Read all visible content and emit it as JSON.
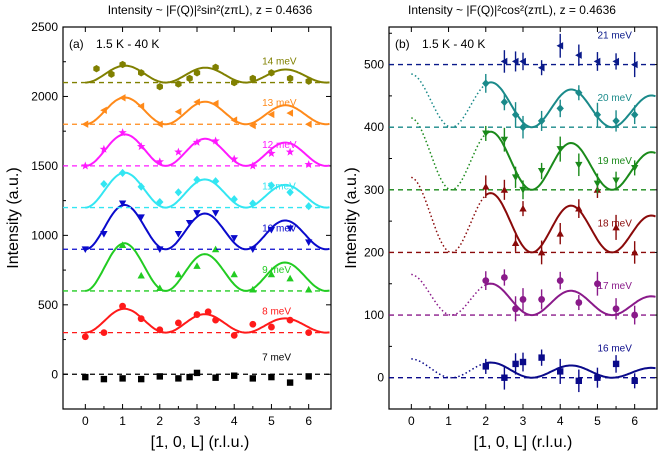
{
  "chart_data": [
    {
      "type": "scatter",
      "id": "a",
      "panel_label": "(a)",
      "temp_label": "1.5 K - 40 K",
      "title": "Intensity ~ |F(Q)|²sin²(zπL),  z = 0.4636",
      "xlabel": "[1, 0, L] (r.l.u.)",
      "ylabel": "Intensity (a.u.)",
      "xlim": [
        -0.6,
        6.6
      ],
      "ylim": [
        -250,
        2500
      ],
      "xticks": [
        "0",
        "1",
        "2",
        "3",
        "4",
        "5",
        "6"
      ],
      "yticks": [
        "0",
        "500",
        "1000",
        "1500",
        "2000",
        "2500"
      ],
      "z": 0.4636,
      "series": [
        {
          "name": "7 meV",
          "color": "#000000",
          "marker": "square",
          "baseline": 0,
          "amp": 0,
          "decay": 0,
          "x": [
            0,
            0.5,
            1,
            1.5,
            2,
            2.5,
            2.8,
            3,
            3.5,
            4,
            4.5,
            5,
            5.5,
            6
          ],
          "y": [
            -20,
            -35,
            -30,
            -35,
            -15,
            -30,
            -20,
            10,
            -25,
            -10,
            -30,
            -20,
            -60,
            -15
          ]
        },
        {
          "name": "8 meV",
          "color": "#ff1a1a",
          "marker": "circle",
          "baseline": 300,
          "amp": 195,
          "decay": 0.12,
          "x": [
            0,
            0.5,
            1,
            1.5,
            2,
            2.5,
            3,
            3.3,
            3.5,
            4,
            4.5,
            5,
            5.5,
            6
          ],
          "y": [
            270,
            300,
            490,
            400,
            320,
            370,
            430,
            450,
            390,
            280,
            360,
            340,
            390,
            300
          ]
        },
        {
          "name": "9 meV",
          "color": "#22cc22",
          "marker": "triangle",
          "baseline": 600,
          "amp": 390,
          "decay": 0.12,
          "x": [
            1,
            1.5,
            2,
            2.5,
            3,
            3.5,
            4,
            4.5,
            5,
            5.5,
            6
          ],
          "y": [
            930,
            710,
            620,
            720,
            780,
            900,
            720,
            610,
            720,
            690,
            610
          ]
        },
        {
          "name": "10 meV",
          "color": "#0a0acc",
          "marker": "triangle-down",
          "baseline": 900,
          "amp": 355,
          "decay": 0.1,
          "x": [
            0,
            0.5,
            1,
            1.5,
            2,
            2.5,
            2.8,
            3,
            3.5,
            4,
            4.5,
            5,
            5.5,
            6
          ],
          "y": [
            900,
            1010,
            1230,
            1130,
            900,
            1010,
            1090,
            1160,
            1160,
            980,
            900,
            1040,
            1050,
            950
          ]
        },
        {
          "name": "11 meV",
          "color": "#33e6f2",
          "marker": "diamond",
          "baseline": 1200,
          "amp": 280,
          "decay": 0.1,
          "x": [
            0.5,
            1,
            1.5,
            2,
            2.5,
            3,
            3.5,
            4,
            4.5,
            5,
            5.5,
            6
          ],
          "y": [
            1370,
            1450,
            1350,
            1240,
            1310,
            1400,
            1390,
            1260,
            1230,
            1360,
            1310,
            1210
          ]
        },
        {
          "name": "12 meV",
          "color": "#ff1aff",
          "marker": "star",
          "baseline": 1500,
          "amp": 245,
          "decay": 0.07,
          "x": [
            0,
            0.5,
            1,
            1.5,
            2,
            2.5,
            3,
            3.5,
            4,
            4.5,
            5,
            5.5,
            6
          ],
          "y": [
            1500,
            1620,
            1740,
            1640,
            1530,
            1600,
            1670,
            1680,
            1550,
            1500,
            1590,
            1600,
            1510
          ]
        },
        {
          "name": "13 meV",
          "color": "#ff8a1a",
          "marker": "triangle-left",
          "baseline": 1800,
          "amp": 210,
          "decay": 0.08,
          "x": [
            0,
            0.5,
            1,
            1.5,
            2,
            2.5,
            3,
            3.5,
            4,
            4.5,
            5,
            5.5,
            6
          ],
          "y": [
            1800,
            1900,
            1990,
            1930,
            1800,
            1890,
            1960,
            1950,
            1830,
            1790,
            1870,
            1880,
            1800
          ]
        },
        {
          "name": "14 meV",
          "color": "#808000",
          "marker": "hexagon",
          "baseline": 2100,
          "amp": 130,
          "decay": 0.06,
          "x": [
            0.3,
            0.7,
            1,
            1.5,
            2,
            2.5,
            2.8,
            3,
            3.5,
            4,
            4.5,
            5,
            5.5,
            6
          ],
          "y": [
            2200,
            2160,
            2230,
            2170,
            2070,
            2090,
            2130,
            2170,
            2210,
            2100,
            2130,
            2170,
            2130,
            2110
          ]
        }
      ]
    },
    {
      "type": "scatter",
      "id": "b",
      "panel_label": "(b)",
      "temp_label": "1.5 K - 40 K",
      "title": "Intensity ~ |F(Q)|²cos²(zπL),  z = 0.4636",
      "xlabel": "[1, 0, L] (r.l.u.)",
      "ylabel": "Intensity (a.u.)",
      "xlim": [
        -0.6,
        6.6
      ],
      "ylim": [
        -50,
        560
      ],
      "xticks": [
        "0",
        "1",
        "2",
        "3",
        "4",
        "5",
        "6"
      ],
      "yticks": [
        "0",
        "100",
        "200",
        "300",
        "400",
        "500"
      ],
      "z": 0.4636,
      "series": [
        {
          "name": "16 meV",
          "color": "#0a0a8a",
          "marker": "square",
          "baseline": 0,
          "amp": 30,
          "decay": 0.1,
          "x": [
            2,
            2.5,
            2.8,
            3,
            3.5,
            4,
            4.5,
            5,
            5.5,
            6
          ],
          "y": [
            18,
            0,
            22,
            25,
            32,
            10,
            -5,
            0,
            22,
            -5
          ]
        },
        {
          "name": "17 meV",
          "color": "#8a1a8a",
          "marker": "circle",
          "baseline": 100,
          "amp": 65,
          "decay": 0.12,
          "x": [
            2,
            2.5,
            2.8,
            3,
            3.5,
            4,
            4.5,
            5,
            5.5,
            6
          ],
          "y": [
            155,
            160,
            110,
            125,
            125,
            155,
            120,
            150,
            110,
            100
          ]
        },
        {
          "name": "18 meV",
          "color": "#8a0a0a",
          "marker": "triangle",
          "baseline": 200,
          "amp": 120,
          "decay": 0.11,
          "x": [
            2,
            2.5,
            2.8,
            3,
            3.5,
            4,
            4.5,
            5,
            5.5,
            6
          ],
          "y": [
            305,
            300,
            215,
            270,
            200,
            230,
            270,
            300,
            240,
            200
          ]
        },
        {
          "name": "19 meV",
          "color": "#1a8a1a",
          "marker": "triangle-down",
          "baseline": 300,
          "amp": 115,
          "decay": 0.1,
          "x": [
            2,
            2.5,
            2.8,
            3,
            3.5,
            4,
            4.5,
            5,
            5.5,
            6
          ],
          "y": [
            390,
            380,
            320,
            300,
            330,
            365,
            340,
            310,
            315,
            335
          ]
        },
        {
          "name": "20 meV",
          "color": "#1a8a8a",
          "marker": "diamond",
          "baseline": 400,
          "amp": 85,
          "decay": 0.08,
          "x": [
            2,
            2.5,
            2.8,
            3,
            3.5,
            4,
            4.5,
            5,
            5.5,
            6
          ],
          "y": [
            470,
            440,
            420,
            400,
            410,
            430,
            455,
            420,
            410,
            420
          ]
        },
        {
          "name": "21 meV",
          "color": "#0a1a8a",
          "marker": "triangle-left",
          "baseline": 500,
          "amp": 0,
          "decay": 0,
          "x": [
            2.5,
            2.8,
            3,
            3.5,
            4,
            4.5,
            5,
            5.5,
            6
          ],
          "y": [
            505,
            505,
            505,
            495,
            530,
            515,
            505,
            505,
            500
          ]
        }
      ]
    }
  ]
}
